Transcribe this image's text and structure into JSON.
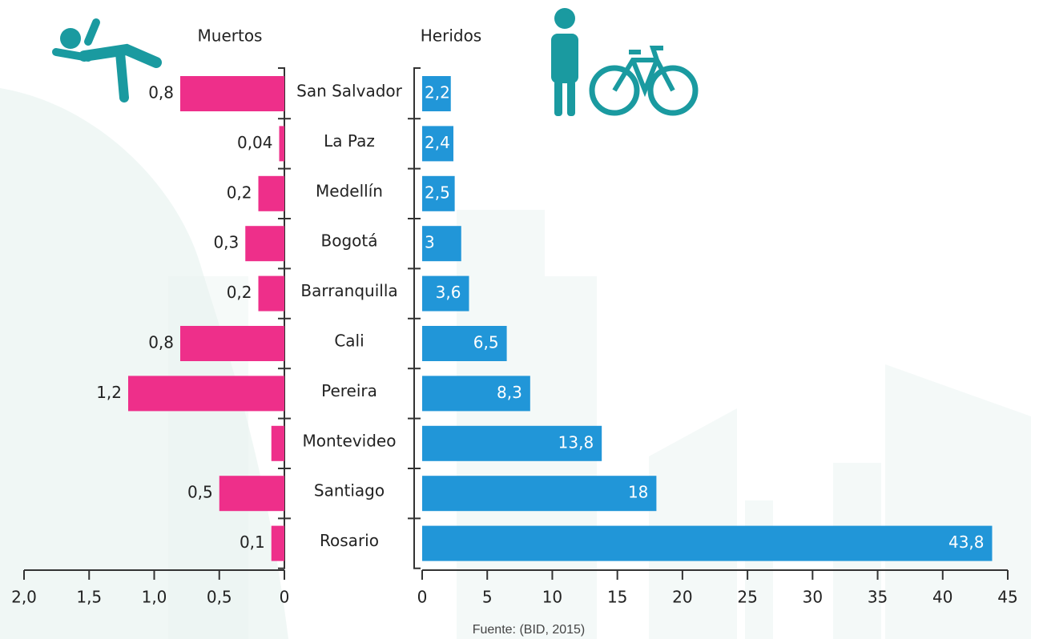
{
  "chart_data": [
    {
      "type": "bar",
      "title": "Muertos",
      "color": "#ee2f8a",
      "categories": [
        "San Salvador",
        "La Paz",
        "Medellín",
        "Bogotá",
        "Barranquilla",
        "Cali",
        "Pereira",
        "Montevideo",
        "Santiago",
        "Rosario"
      ],
      "values": [
        0.8,
        0.04,
        0.2,
        0.3,
        0.2,
        0.8,
        1.2,
        0.1,
        0.5,
        0.1
      ],
      "value_labels": [
        "0,8",
        "0,04",
        "0,2",
        "0,3",
        "0,2",
        "0,8",
        "1,2",
        null,
        "0,5",
        "0,1"
      ],
      "xlim": [
        2,
        0
      ],
      "xticks": [
        {
          "value": 2,
          "label": "2,0"
        },
        {
          "value": 1.5,
          "label": "1,5"
        },
        {
          "value": 1,
          "label": "1,0"
        },
        {
          "value": 0.5,
          "label": "0,5"
        },
        0
      ]
    },
    {
      "type": "bar",
      "title": "Heridos",
      "color": "#2196d8",
      "values": [
        2.2,
        2.4,
        2.5,
        3,
        3.6,
        6.5,
        8.3,
        13.8,
        18,
        43.8
      ],
      "value_labels": [
        "2,2",
        "2,4",
        "2,5",
        "3",
        "3,6",
        "6,5",
        "8,3",
        "13,8",
        "18",
        "43,8"
      ],
      "xlim": [
        0,
        45
      ],
      "xticks": [
        0,
        5,
        10,
        15,
        20,
        25,
        30,
        35,
        40,
        45
      ]
    }
  ],
  "source": "Fuente: (BID, 2015)"
}
